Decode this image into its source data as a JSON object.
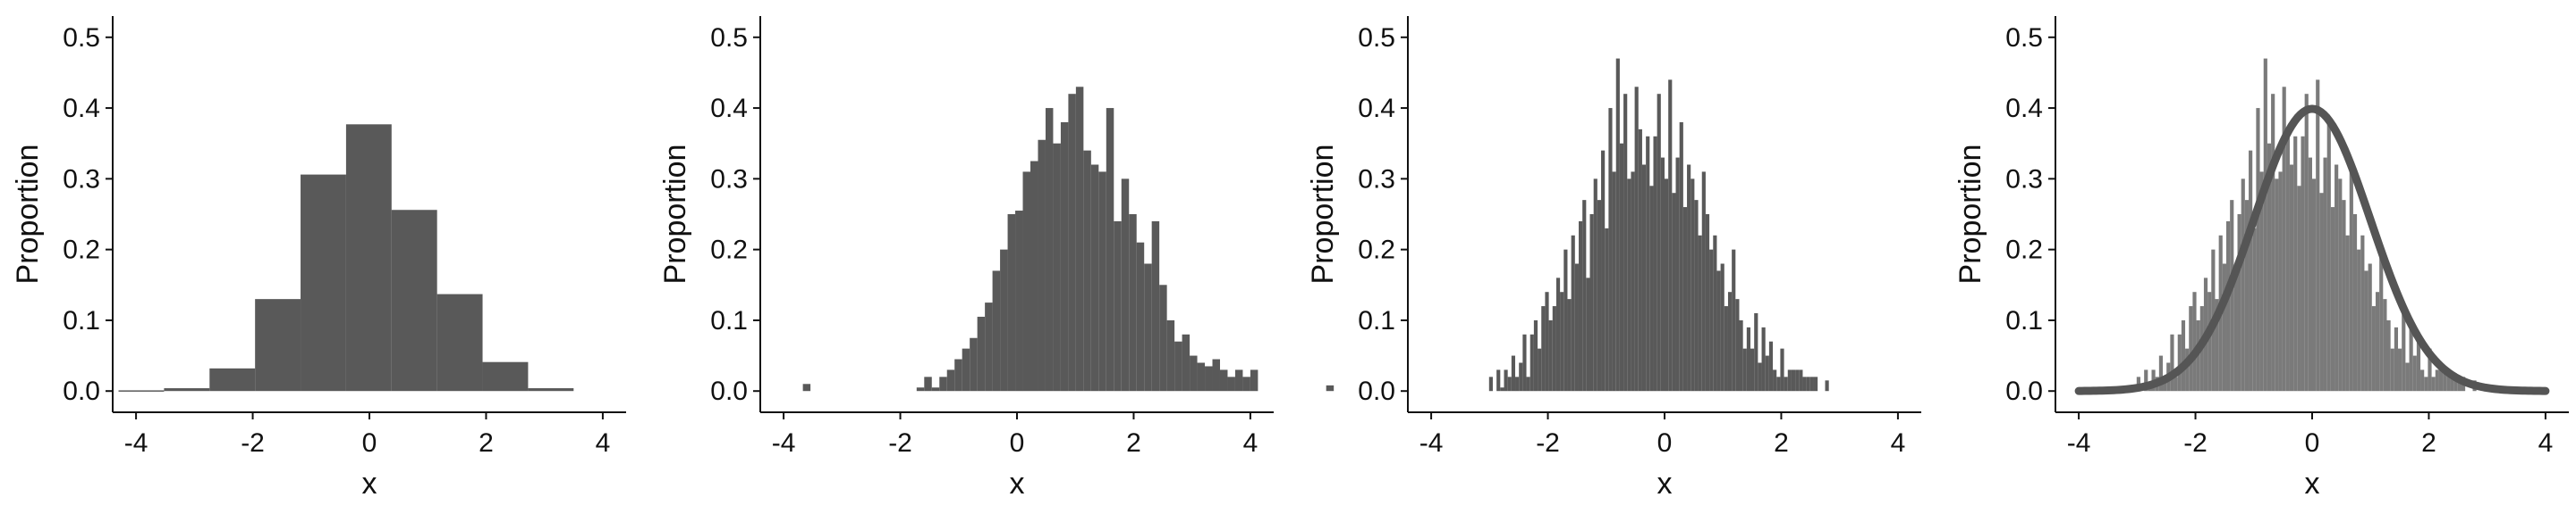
{
  "chart_data": [
    {
      "type": "bar",
      "xlabel": "x",
      "ylabel": "Proportion",
      "xlim": [
        -4.4,
        4.4
      ],
      "ylim": [
        -0.03,
        0.53
      ],
      "xticks": [
        -4,
        -2,
        0,
        2,
        4
      ],
      "yticks": [
        0.0,
        0.1,
        0.2,
        0.3,
        0.4,
        0.5
      ],
      "xtick_labels": [
        "-4",
        "-2",
        "0",
        "2",
        "4"
      ],
      "ytick_labels": [
        "0.0",
        "0.1",
        "0.2",
        "0.3",
        "0.4",
        "0.5"
      ],
      "bar_color": "#595959",
      "bins": {
        "start": -4.3,
        "width": 0.78,
        "values": [
          0.001,
          0.004,
          0.032,
          0.13,
          0.306,
          0.377,
          0.256,
          0.137,
          0.041,
          0.004
        ]
      }
    },
    {
      "type": "bar",
      "xlabel": "x",
      "ylabel": "Proportion",
      "xlim": [
        -4.4,
        4.4
      ],
      "ylim": [
        -0.03,
        0.53
      ],
      "xticks": [
        -4,
        -2,
        0,
        2,
        4
      ],
      "yticks": [
        0.0,
        0.1,
        0.2,
        0.3,
        0.4,
        0.5
      ],
      "xtick_labels": [
        "-4",
        "-2",
        "0",
        "2",
        "4"
      ],
      "ytick_labels": [
        "0.0",
        "0.1",
        "0.2",
        "0.3",
        "0.4",
        "0.5"
      ],
      "bar_color": "#595959",
      "bins": {
        "start": -3.67,
        "width": 0.13,
        "values": [
          0.01,
          0,
          0,
          0,
          0,
          0,
          0,
          0,
          0,
          0,
          0,
          0,
          0,
          0,
          0,
          0.005,
          0.02,
          0.005,
          0.02,
          0.03,
          0.045,
          0.06,
          0.075,
          0.105,
          0.125,
          0.17,
          0.2,
          0.25,
          0.255,
          0.31,
          0.325,
          0.355,
          0.4,
          0.35,
          0.38,
          0.42,
          0.43,
          0.34,
          0.32,
          0.31,
          0.4,
          0.24,
          0.3,
          0.25,
          0.21,
          0.18,
          0.24,
          0.15,
          0.1,
          0.07,
          0.08,
          0.05,
          0.04,
          0.035,
          0.045,
          0.03,
          0.02,
          0.03,
          0.02,
          0.03,
          0,
          0,
          0,
          0,
          0,
          0,
          0,
          0,
          0,
          0.008
        ]
      }
    },
    {
      "type": "bar",
      "xlabel": "x",
      "ylabel": "Proportion",
      "xlim": [
        -4.4,
        4.4
      ],
      "ylim": [
        -0.03,
        0.53
      ],
      "xticks": [
        -4,
        -2,
        0,
        2,
        4
      ],
      "yticks": [
        0.0,
        0.1,
        0.2,
        0.3,
        0.4,
        0.5
      ],
      "xtick_labels": [
        "-4",
        "-2",
        "0",
        "2",
        "4"
      ],
      "ytick_labels": [
        "0.0",
        "0.1",
        "0.2",
        "0.3",
        "0.4",
        "0.5"
      ],
      "bar_color": "#595959",
      "bins": {
        "start": -3.2,
        "width": 0.064,
        "values": [
          0,
          0,
          0,
          0.02,
          0,
          0.03,
          0.005,
          0.03,
          0.02,
          0.05,
          0.02,
          0.04,
          0.08,
          0.02,
          0.08,
          0.1,
          0.06,
          0.12,
          0.14,
          0.1,
          0.12,
          0.16,
          0.14,
          0.2,
          0.13,
          0.22,
          0.18,
          0.24,
          0.27,
          0.16,
          0.25,
          0.3,
          0.27,
          0.34,
          0.23,
          0.4,
          0.31,
          0.47,
          0.35,
          0.42,
          0.3,
          0.31,
          0.43,
          0.37,
          0.32,
          0.36,
          0.29,
          0.36,
          0.42,
          0.33,
          0.3,
          0.44,
          0.28,
          0.33,
          0.38,
          0.26,
          0.32,
          0.3,
          0.27,
          0.22,
          0.31,
          0.25,
          0.2,
          0.22,
          0.17,
          0.18,
          0.12,
          0.14,
          0.2,
          0.13,
          0.1,
          0.06,
          0.09,
          0.06,
          0.11,
          0.04,
          0.09,
          0.05,
          0.07,
          0.03,
          0.02,
          0.06,
          0.02,
          0.03,
          0.03,
          0.03,
          0.03,
          0.02,
          0.02,
          0.02,
          0.02,
          0,
          0,
          0.015
        ]
      }
    },
    {
      "type": "bar",
      "xlabel": "x",
      "ylabel": "Proportion",
      "xlim": [
        -4.4,
        4.4
      ],
      "ylim": [
        -0.03,
        0.53
      ],
      "xticks": [
        -4,
        -2,
        0,
        2,
        4
      ],
      "yticks": [
        0.0,
        0.1,
        0.2,
        0.3,
        0.4,
        0.5
      ],
      "xtick_labels": [
        "-4",
        "-2",
        "0",
        "2",
        "4"
      ],
      "ytick_labels": [
        "0.0",
        "0.1",
        "0.2",
        "0.3",
        "0.4",
        "0.5"
      ],
      "bar_color": "#7a7a7a",
      "bins": {
        "start": -3.2,
        "width": 0.064,
        "values": [
          0,
          0,
          0,
          0.02,
          0,
          0.03,
          0.005,
          0.03,
          0.02,
          0.05,
          0.02,
          0.04,
          0.08,
          0.02,
          0.08,
          0.1,
          0.06,
          0.12,
          0.14,
          0.1,
          0.12,
          0.16,
          0.14,
          0.2,
          0.13,
          0.22,
          0.18,
          0.24,
          0.27,
          0.16,
          0.25,
          0.3,
          0.27,
          0.34,
          0.23,
          0.4,
          0.31,
          0.47,
          0.35,
          0.42,
          0.3,
          0.31,
          0.43,
          0.37,
          0.32,
          0.36,
          0.29,
          0.36,
          0.42,
          0.33,
          0.3,
          0.44,
          0.28,
          0.33,
          0.38,
          0.26,
          0.32,
          0.3,
          0.27,
          0.22,
          0.31,
          0.25,
          0.2,
          0.22,
          0.17,
          0.18,
          0.12,
          0.14,
          0.2,
          0.13,
          0.1,
          0.06,
          0.09,
          0.06,
          0.11,
          0.04,
          0.09,
          0.05,
          0.07,
          0.03,
          0.02,
          0.06,
          0.02,
          0.03,
          0.03,
          0.03,
          0.03,
          0.02,
          0.02,
          0.02,
          0.02,
          0,
          0,
          0.015
        ]
      },
      "overlay": {
        "type": "line",
        "name": "normal density",
        "mean": 0,
        "sd": 1,
        "x_range": [
          -4,
          4
        ],
        "color": "#555555"
      }
    }
  ]
}
